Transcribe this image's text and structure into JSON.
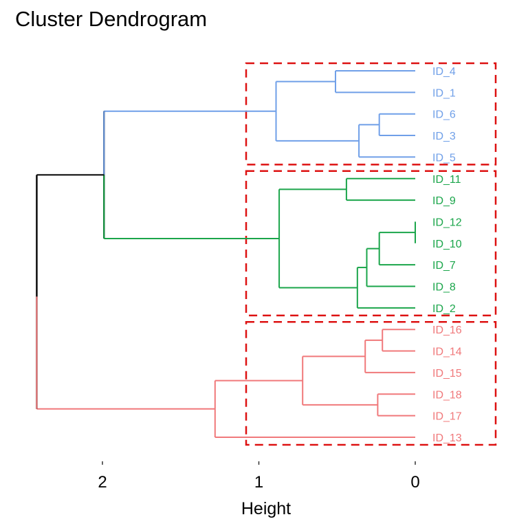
{
  "chart_data": {
    "type": "dendrogram",
    "title": "Cluster Dendrogram",
    "xlabel": "Height",
    "xlim": [
      2.4,
      -0.5
    ],
    "xticks": [
      {
        "value": 2,
        "label": "2"
      },
      {
        "value": 1,
        "label": "1"
      },
      {
        "value": 0,
        "label": "0"
      }
    ],
    "leaves": [
      "ID_4",
      "ID_1",
      "ID_6",
      "ID_3",
      "ID_5",
      "ID_11",
      "ID_9",
      "ID_12",
      "ID_10",
      "ID_7",
      "ID_8",
      "ID_2",
      "ID_16",
      "ID_14",
      "ID_15",
      "ID_18",
      "ID_17",
      "ID_13"
    ],
    "merges": [
      {
        "id": "m1",
        "a": "ID_12",
        "b": "ID_10",
        "height": 0.0,
        "cluster": 2
      },
      {
        "id": "m2",
        "a": "ID_6",
        "b": "ID_3",
        "height": 0.23,
        "cluster": 1
      },
      {
        "id": "m3",
        "a": "ID_16",
        "b": "ID_14",
        "height": 0.21,
        "cluster": 3
      },
      {
        "id": "m4",
        "a": "ID_18",
        "b": "ID_17",
        "height": 0.24,
        "cluster": 3
      },
      {
        "id": "m5",
        "a": "m1",
        "b": "ID_7",
        "height": 0.23,
        "cluster": 2
      },
      {
        "id": "m6",
        "a": "m5",
        "b": "ID_8",
        "height": 0.31,
        "cluster": 2
      },
      {
        "id": "m7",
        "a": "m3",
        "b": "ID_15",
        "height": 0.32,
        "cluster": 3
      },
      {
        "id": "m8",
        "a": "m2",
        "b": "ID_5",
        "height": 0.36,
        "cluster": 1
      },
      {
        "id": "m9",
        "a": "m6",
        "b": "ID_2",
        "height": 0.37,
        "cluster": 2
      },
      {
        "id": "m10",
        "a": "ID_11",
        "b": "ID_9",
        "height": 0.44,
        "cluster": 2
      },
      {
        "id": "m11",
        "a": "ID_4",
        "b": "ID_1",
        "height": 0.51,
        "cluster": 1
      },
      {
        "id": "m12",
        "a": "m7",
        "b": "m4",
        "height": 0.72,
        "cluster": 3
      },
      {
        "id": "m13",
        "a": "m10",
        "b": "m9",
        "height": 0.87,
        "cluster": 2
      },
      {
        "id": "m14",
        "a": "m11",
        "b": "m8",
        "height": 0.89,
        "cluster": 1
      },
      {
        "id": "m15",
        "a": "m12",
        "b": "ID_13",
        "height": 1.28,
        "cluster": 3
      },
      {
        "id": "m16",
        "a": "m14",
        "b": "m13",
        "height": 1.99,
        "cluster": 0
      },
      {
        "id": "m17",
        "a": "m16",
        "b": "m15",
        "height": 2.42,
        "cluster": 0
      }
    ],
    "cluster_colors": {
      "0": "#000000",
      "1": "#6F9FE8",
      "2": "#1AA54A",
      "3": "#F0787A"
    },
    "clusters": [
      {
        "name": "1",
        "color": "#6F9FE8",
        "leaves": [
          "ID_4",
          "ID_1",
          "ID_6",
          "ID_3",
          "ID_5"
        ]
      },
      {
        "name": "2",
        "color": "#1AA54A",
        "leaves": [
          "ID_11",
          "ID_9",
          "ID_12",
          "ID_10",
          "ID_7",
          "ID_8",
          "ID_2"
        ]
      },
      {
        "name": "3",
        "color": "#F0787A",
        "leaves": [
          "ID_16",
          "ID_14",
          "ID_15",
          "ID_18",
          "ID_17",
          "ID_13"
        ]
      }
    ],
    "rect_color": "#DD1111",
    "grid": false,
    "legend": "none"
  }
}
